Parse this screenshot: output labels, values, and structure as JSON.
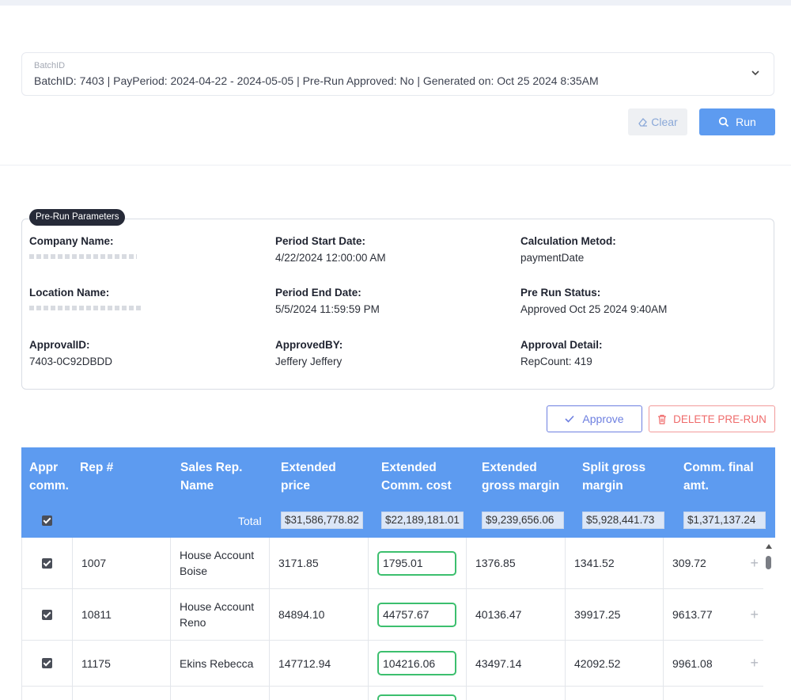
{
  "batch": {
    "label": "BatchID",
    "value": "BatchID: 7403 | PayPeriod: 2024-04-22 - 2024-05-05 | Pre-Run Approved: No | Generated on: Oct 25 2024 8:35AM",
    "chevron_icon": "chevron-down-icon"
  },
  "actions": {
    "clear_label": "Clear",
    "run_label": "Run"
  },
  "params": {
    "badge": "Pre-Run Parameters",
    "company_name_label": "Company Name:",
    "period_start_label": "Period Start Date:",
    "period_start_value": "4/22/2024 12:00:00 AM",
    "calc_method_label": "Calculation Metod:",
    "calc_method_value": "paymentDate",
    "location_name_label": "Location Name:",
    "period_end_label": "Period End Date:",
    "period_end_value": "5/5/2024 11:59:59 PM",
    "pre_run_status_label": "Pre Run Status:",
    "pre_run_status_value": "Approved Oct 25 2024 9:40AM",
    "approval_id_label": "ApprovalID:",
    "approval_id_value": "7403-0C92DBDD",
    "approved_by_label": "ApprovedBY:",
    "approved_by_value": "Jeffery Jeffery",
    "approval_detail_label": "Approval Detail:",
    "approval_detail_value": "RepCount: 419"
  },
  "buttons": {
    "approve_label": "Approve",
    "delete_label": "DELETE PRE-RUN"
  },
  "table": {
    "headers": {
      "appr": "Appr comm.",
      "rep": "Rep #",
      "name": "Sales Rep. Name",
      "ext_price": "Extended price",
      "ext_comm": "Extended Comm. cost",
      "ext_gm": "Extended gross margin",
      "split_gm": "Split gross margin",
      "final_amt": "Comm. final amt."
    },
    "total_label": "Total",
    "totals": {
      "ext_price": "$31,586,778.82",
      "ext_comm": "$22,189,181.01",
      "ext_gm": "$9,239,656.06",
      "split_gm": "$5,928,441.73",
      "final_amt": "$1,371,137.24"
    },
    "rows": [
      {
        "rep": "1007",
        "name": "House Account Boise",
        "ext_price": "3171.85",
        "ext_comm": "1795.01",
        "ext_gm": "1376.85",
        "split_gm": "1341.52",
        "final_amt": "309.72"
      },
      {
        "rep": "10811",
        "name": "House Account Reno",
        "ext_price": "84894.10",
        "ext_comm": "44757.67",
        "ext_gm": "40136.47",
        "split_gm": "39917.25",
        "final_amt": "9613.77"
      },
      {
        "rep": "11175",
        "name": "Ekins Rebecca",
        "ext_price": "147712.94",
        "ext_comm": "104216.06",
        "ext_gm": "43497.14",
        "split_gm": "42092.52",
        "final_amt": "9961.08"
      }
    ]
  }
}
